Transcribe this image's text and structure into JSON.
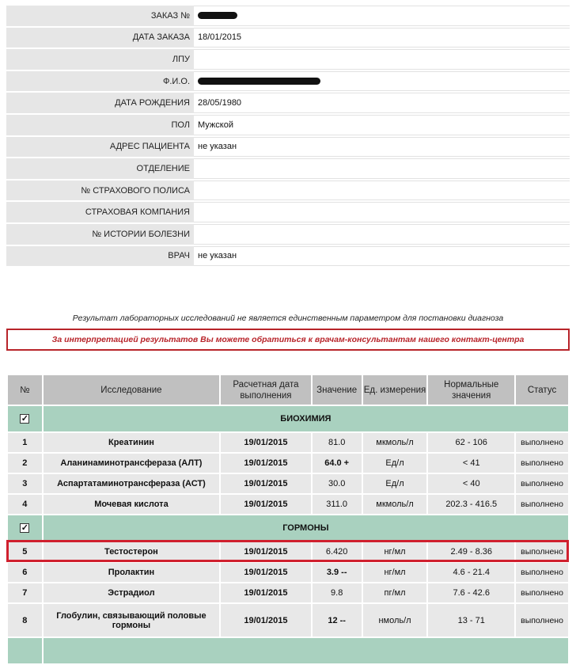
{
  "patient_info": [
    {
      "label": "ЗАКАЗ №",
      "value": "",
      "redacted": true
    },
    {
      "label": "ДАТА ЗАКАЗА",
      "value": "18/01/2015"
    },
    {
      "label": "ЛПУ",
      "value": "",
      "redacted": true
    },
    {
      "label": "Ф.И.О.",
      "value": "",
      "redacted": true
    },
    {
      "label": "ДАТА РОЖДЕНИЯ",
      "value": "28/05/1980"
    },
    {
      "label": "ПОЛ",
      "value": "Мужской"
    },
    {
      "label": "АДРЕС ПАЦИЕНТА",
      "value": "не указан"
    },
    {
      "label": "ОТДЕЛЕНИЕ",
      "value": ""
    },
    {
      "label": "№ СТРАХОВОГО ПОЛИСА",
      "value": ""
    },
    {
      "label": "СТРАХОВАЯ КОМПАНИЯ",
      "value": ""
    },
    {
      "label": "№ ИСТОРИИ БОЛЕЗНИ",
      "value": ""
    },
    {
      "label": "ВРАЧ",
      "value": "не указан"
    }
  ],
  "note": "Результат лабораторных исследований не является единственным параметром для постановки диагноза",
  "warning": "За интерпретацией результатов Вы можете обратиться к врачам-консультантам нашего контакт-центра",
  "colors": {
    "warning": "#b8242a",
    "group_row": "#a9d1bf",
    "header": "#c0c0c0",
    "highlight": "#d0202e"
  },
  "results": {
    "headers": [
      "№",
      "Исследование",
      "Расчетная дата выполнения",
      "Значение",
      "Ед. измерения",
      "Нормальные значения",
      "Статус"
    ],
    "groups": [
      {
        "name": "БИОХИМИЯ",
        "checked": true,
        "rows": [
          {
            "n": "1",
            "test": "Креатинин",
            "date": "19/01/2015",
            "value": "81.0",
            "unit": "мкмоль/л",
            "norm": "62 - 106",
            "status": "выполнено"
          },
          {
            "n": "2",
            "test": "Аланинаминотрансфераза (АЛТ)",
            "date": "19/01/2015",
            "value": "64.0 +",
            "unit": "Ед/л",
            "norm": "< 41",
            "status": "выполнено",
            "bold": true
          },
          {
            "n": "3",
            "test": "Аспартатаминотрансфераза (АСТ)",
            "date": "19/01/2015",
            "value": "30.0",
            "unit": "Ед/л",
            "norm": "< 40",
            "status": "выполнено"
          },
          {
            "n": "4",
            "test": "Мочевая кислота",
            "date": "19/01/2015",
            "value": "311.0",
            "unit": "мкмоль/л",
            "norm": "202.3 - 416.5",
            "status": "выполнено"
          }
        ]
      },
      {
        "name": "ГОРМОНЫ",
        "checked": true,
        "rows": [
          {
            "n": "5",
            "test": "Тестостерон",
            "date": "19/01/2015",
            "value": "6.420",
            "unit": "нг/мл",
            "norm": "2.49 - 8.36",
            "status": "выполнено",
            "highlighted": true
          },
          {
            "n": "6",
            "test": "Пролактин",
            "date": "19/01/2015",
            "value": "3.9 --",
            "unit": "нг/мл",
            "norm": "4.6 - 21.4",
            "status": "выполнено",
            "bold": true
          },
          {
            "n": "7",
            "test": "Эстрадиол",
            "date": "19/01/2015",
            "value": "9.8",
            "unit": "пг/мл",
            "norm": "7.6 - 42.6",
            "status": "выполнено"
          },
          {
            "n": "8",
            "test": "Глобулин, связывающий половые гормоны",
            "date": "19/01/2015",
            "value": "12 --",
            "unit": "нмоль/л",
            "norm": "13 - 71",
            "status": "выполнено",
            "bold": true
          }
        ]
      }
    ]
  }
}
